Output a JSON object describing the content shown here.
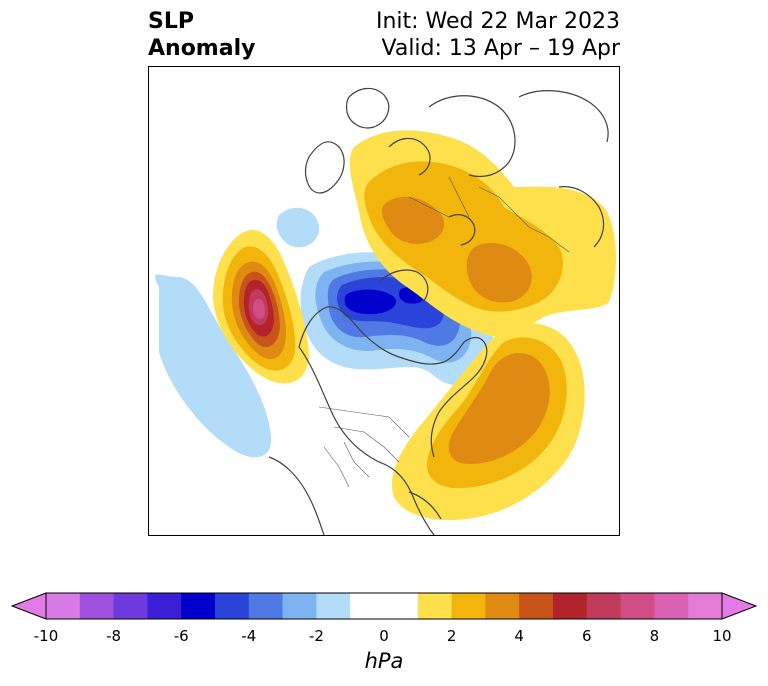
{
  "title": {
    "line1": "SLP",
    "line2": "Anomaly"
  },
  "subtitle": {
    "line1": "Init: Wed 22 Mar 2023",
    "line2": "Valid: 13 Apr – 19 Apr"
  },
  "map": {
    "projection": "north-polar-stereographic",
    "field": "sea level pressure anomaly",
    "features": [
      {
        "name": "negative-anomaly-arctic",
        "value_hpa": -7.5
      },
      {
        "name": "positive-anomaly-gulf-of-alaska",
        "value_hpa": 8.5
      },
      {
        "name": "negative-anomaly-north-pacific",
        "value_hpa": -1.5
      },
      {
        "name": "positive-anomaly-north-atlantic",
        "value_hpa": 4.5
      },
      {
        "name": "positive-anomaly-europe-west-russia",
        "value_hpa": 4.5
      }
    ]
  },
  "colorbar": {
    "unit": "hPa",
    "ticks": [
      "-10",
      "-8",
      "-6",
      "-4",
      "-2",
      "0",
      "2",
      "4",
      "6",
      "8",
      "10"
    ],
    "min": -10,
    "max": 10,
    "colors": [
      "#d97be6",
      "#a050de",
      "#6c3add",
      "#3a1fd6",
      "#0000cc",
      "#2a44d9",
      "#4f7ae3",
      "#7db3f0",
      "#b3dcf9",
      "#ffffff",
      "#ffffff",
      "#fde04c",
      "#f2b50c",
      "#df8a13",
      "#c8541a",
      "#b3232b",
      "#c03a5b",
      "#d04d85",
      "#da62b3",
      "#e27cd6"
    ],
    "extend_left_color": "#e27be6",
    "extend_right_color": "#e27be6"
  }
}
